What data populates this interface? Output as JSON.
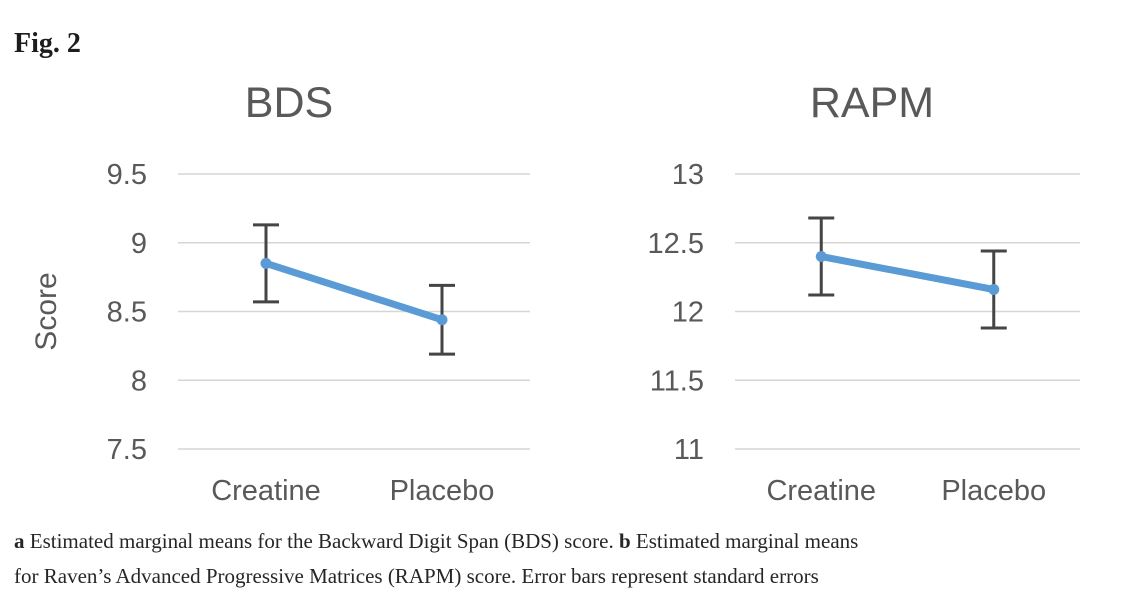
{
  "figure": {
    "label": "Fig. 2"
  },
  "caption": {
    "line1": [
      {
        "text": "a",
        "bold": true
      },
      {
        "text": " Estimated marginal means for the Backward Digit Span (BDS) score. ",
        "bold": false
      },
      {
        "text": "b",
        "bold": true
      },
      {
        "text": " Estimated marginal means",
        "bold": false
      }
    ],
    "line2": [
      {
        "text": "for Raven’s Advanced Progressive Matrices (RAPM) score. Error bars represent standard errors",
        "bold": false
      }
    ]
  },
  "colors": {
    "line": "#5B9BD5",
    "error_bar": "#454545",
    "gridline": "#D6D6D6",
    "axis_text": "#595959",
    "title_text": "#595959"
  },
  "chart_data": [
    {
      "type": "line",
      "title": "BDS",
      "ylabel": "Score",
      "xlabel": "",
      "categories": [
        "Creatine",
        "Placebo"
      ],
      "series": [
        {
          "name": "Estimated marginal mean",
          "values": [
            8.85,
            8.44
          ],
          "error_low": [
            8.57,
            8.19
          ],
          "error_high": [
            9.13,
            8.69
          ]
        }
      ],
      "ylim": [
        7.5,
        9.5
      ],
      "yticks": [
        9.5,
        9,
        8.5,
        8,
        7.5
      ],
      "grid": true,
      "legend_position": "none"
    },
    {
      "type": "line",
      "title": "RAPM",
      "ylabel": "",
      "xlabel": "",
      "categories": [
        "Creatine",
        "Placebo"
      ],
      "series": [
        {
          "name": "Estimated marginal mean",
          "values": [
            12.4,
            12.16
          ],
          "error_low": [
            12.12,
            11.88
          ],
          "error_high": [
            12.68,
            12.44
          ]
        }
      ],
      "ylim": [
        11,
        13
      ],
      "yticks": [
        13,
        12.5,
        12,
        11.5,
        11
      ],
      "grid": true,
      "legend_position": "none"
    }
  ]
}
